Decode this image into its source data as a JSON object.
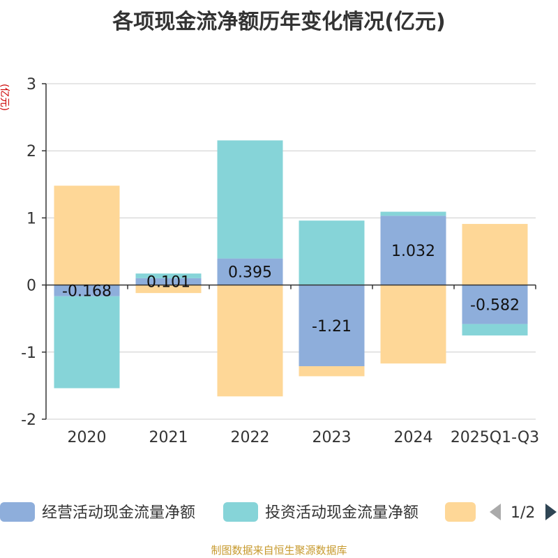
{
  "chart_data": {
    "type": "bar",
    "stacked": true,
    "title": "各项现金流净额历年变化情况(亿元)",
    "ylabel": "(亿元)",
    "xlabel": "",
    "ylim": [
      -2,
      3
    ],
    "yticks": [
      3,
      2,
      1,
      0,
      -1,
      -2
    ],
    "categories": [
      "2020",
      "2021",
      "2022",
      "2023",
      "2024",
      "2025Q1-Q3"
    ],
    "series": [
      {
        "name": "经营活动现金流量净额",
        "color": "#8eaedb",
        "values": [
          -0.168,
          0.101,
          0.395,
          -1.21,
          1.032,
          -0.582
        ],
        "labels": [
          "-0.168",
          "0.101",
          "0.395",
          "-1.21",
          "1.032",
          "-0.582"
        ]
      },
      {
        "name": "投资活动现金流量净额",
        "color": "#86d4d8",
        "values": [
          -1.37,
          0.07,
          1.76,
          0.96,
          0.06,
          -0.17
        ]
      },
      {
        "name": "",
        "color": "#fed797",
        "values": [
          1.48,
          -0.12,
          -1.66,
          -0.15,
          -1.17,
          0.91
        ]
      }
    ],
    "legend_position": "bottom",
    "pager": "1/2"
  },
  "source_note": "制图数据来自恒生聚源数据库"
}
